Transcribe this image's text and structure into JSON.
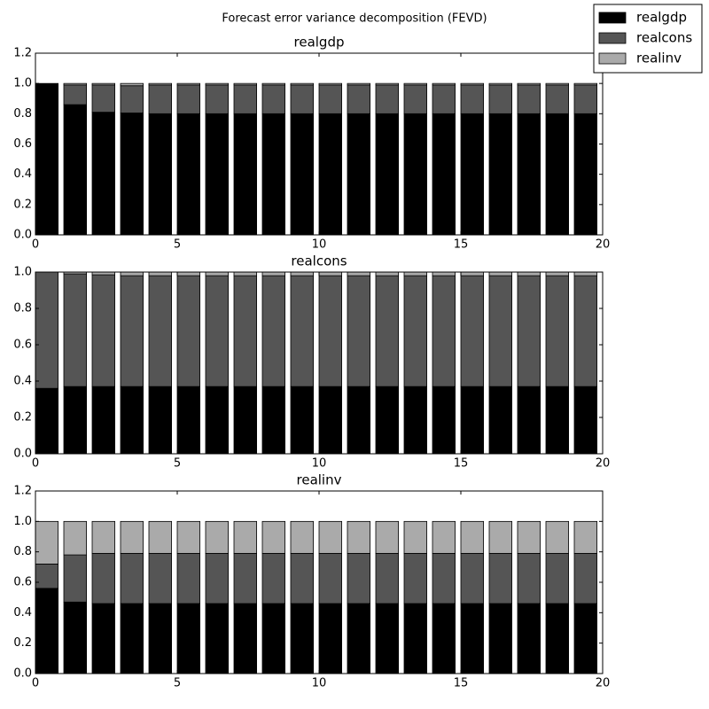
{
  "title": "Forecast error variance decomposition (FEVD)",
  "legend_position": "upper right",
  "chart_data": [
    {
      "type": "bar",
      "stacked": true,
      "title": "realgdp",
      "x": [
        0,
        1,
        2,
        3,
        4,
        5,
        6,
        7,
        8,
        9,
        10,
        11,
        12,
        13,
        14,
        15,
        16,
        17,
        18,
        19
      ],
      "xlim": [
        0,
        20
      ],
      "xticks": [
        0,
        5,
        10,
        15,
        20
      ],
      "ylim": [
        0,
        1.2
      ],
      "yticks": [
        {
          "value": 0,
          "label": "0.0"
        },
        0.2,
        0.4,
        0.6,
        0.8,
        {
          "value": 1,
          "label": "1.0"
        },
        1.2
      ],
      "series": [
        {
          "name": "realgdp",
          "color": "#000000",
          "values": [
            1.0,
            0.86,
            0.81,
            0.805,
            0.8,
            0.8,
            0.8,
            0.8,
            0.8,
            0.8,
            0.8,
            0.8,
            0.8,
            0.8,
            0.8,
            0.8,
            0.8,
            0.8,
            0.8,
            0.8
          ]
        },
        {
          "name": "realcons",
          "color": "#555555",
          "values": [
            0,
            0.13,
            0.18,
            0.18,
            0.19,
            0.19,
            0.19,
            0.19,
            0.19,
            0.19,
            0.19,
            0.19,
            0.19,
            0.19,
            0.19,
            0.19,
            0.19,
            0.19,
            0.19,
            0.19
          ]
        },
        {
          "name": "realinv",
          "color": "#aaaaaa",
          "values": [
            0,
            0.01,
            0.01,
            0.015,
            0.01,
            0.01,
            0.01,
            0.01,
            0.01,
            0.01,
            0.01,
            0.01,
            0.01,
            0.01,
            0.01,
            0.01,
            0.01,
            0.01,
            0.01,
            0.01
          ]
        }
      ]
    },
    {
      "type": "bar",
      "stacked": true,
      "title": "realcons",
      "x": [
        0,
        1,
        2,
        3,
        4,
        5,
        6,
        7,
        8,
        9,
        10,
        11,
        12,
        13,
        14,
        15,
        16,
        17,
        18,
        19
      ],
      "xlim": [
        0,
        20
      ],
      "xticks": [
        0,
        5,
        10,
        15,
        20
      ],
      "ylim": [
        0,
        1.0
      ],
      "yticks": [
        {
          "value": 0,
          "label": "0.0"
        },
        0.2,
        0.4,
        0.6,
        0.8,
        {
          "value": 1,
          "label": "1.0"
        }
      ],
      "series": [
        {
          "name": "realgdp",
          "color": "#000000",
          "values": [
            0.36,
            0.37,
            0.37,
            0.37,
            0.37,
            0.37,
            0.37,
            0.37,
            0.37,
            0.37,
            0.37,
            0.37,
            0.37,
            0.37,
            0.37,
            0.37,
            0.37,
            0.37,
            0.37,
            0.37
          ]
        },
        {
          "name": "realcons",
          "color": "#555555",
          "values": [
            0.64,
            0.62,
            0.615,
            0.61,
            0.61,
            0.61,
            0.61,
            0.61,
            0.61,
            0.61,
            0.61,
            0.61,
            0.61,
            0.61,
            0.61,
            0.61,
            0.61,
            0.61,
            0.61,
            0.61
          ]
        },
        {
          "name": "realinv",
          "color": "#aaaaaa",
          "values": [
            0,
            0.01,
            0.015,
            0.02,
            0.02,
            0.02,
            0.02,
            0.02,
            0.02,
            0.02,
            0.02,
            0.02,
            0.02,
            0.02,
            0.02,
            0.02,
            0.02,
            0.02,
            0.02,
            0.02
          ]
        }
      ]
    },
    {
      "type": "bar",
      "stacked": true,
      "title": "realinv",
      "x": [
        0,
        1,
        2,
        3,
        4,
        5,
        6,
        7,
        8,
        9,
        10,
        11,
        12,
        13,
        14,
        15,
        16,
        17,
        18,
        19
      ],
      "xlim": [
        0,
        20
      ],
      "xticks": [
        0,
        5,
        10,
        15,
        20
      ],
      "ylim": [
        0,
        1.2
      ],
      "yticks": [
        {
          "value": 0,
          "label": "0.0"
        },
        0.2,
        0.4,
        0.6,
        0.8,
        {
          "value": 1,
          "label": "1.0"
        },
        1.2
      ],
      "series": [
        {
          "name": "realgdp",
          "color": "#000000",
          "values": [
            0.56,
            0.47,
            0.46,
            0.46,
            0.46,
            0.46,
            0.46,
            0.46,
            0.46,
            0.46,
            0.46,
            0.46,
            0.46,
            0.46,
            0.46,
            0.46,
            0.46,
            0.46,
            0.46,
            0.46
          ]
        },
        {
          "name": "realcons",
          "color": "#555555",
          "values": [
            0.16,
            0.31,
            0.33,
            0.33,
            0.33,
            0.33,
            0.33,
            0.33,
            0.33,
            0.33,
            0.33,
            0.33,
            0.33,
            0.33,
            0.33,
            0.33,
            0.33,
            0.33,
            0.33,
            0.33
          ]
        },
        {
          "name": "realinv",
          "color": "#aaaaaa",
          "values": [
            0.28,
            0.22,
            0.21,
            0.21,
            0.21,
            0.21,
            0.21,
            0.21,
            0.21,
            0.21,
            0.21,
            0.21,
            0.21,
            0.21,
            0.21,
            0.21,
            0.21,
            0.21,
            0.21,
            0.21
          ]
        }
      ]
    }
  ]
}
